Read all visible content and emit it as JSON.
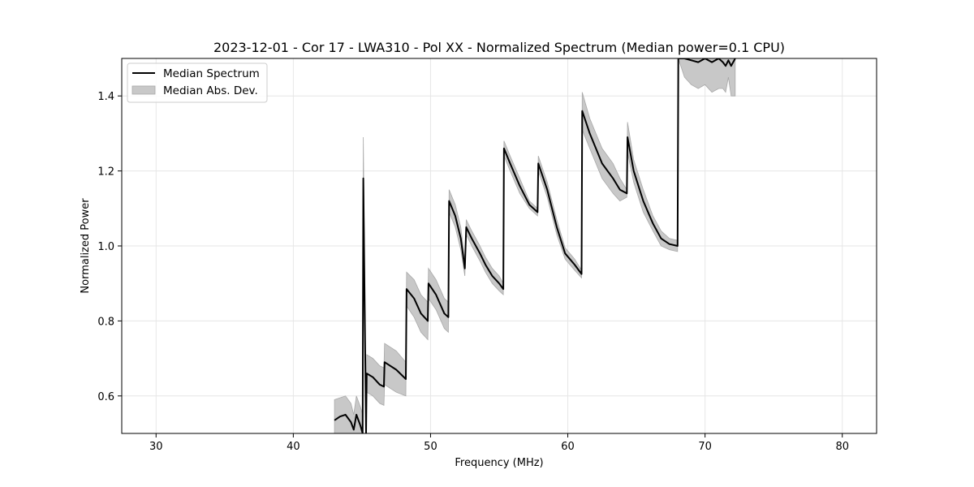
{
  "chart_data": {
    "type": "line",
    "title": "2023-12-01 - Cor 17 - LWA310 - Pol XX - Normalized Spectrum (Median power=0.1 CPU)",
    "xlabel": "Frequency (MHz)",
    "ylabel": "Normalized Power",
    "xlim": [
      27.5,
      82.5
    ],
    "ylim": [
      0.5,
      1.5
    ],
    "xticks": [
      30,
      40,
      50,
      60,
      70,
      80
    ],
    "yticks": [
      0.6,
      0.8,
      1.0,
      1.2,
      1.4
    ],
    "grid": true,
    "legend_position": "top-left",
    "colors": {
      "line": "#000000",
      "band": "#c8c8c8",
      "band_edge": "#a8a8a8",
      "grid": "#e6e6e6"
    },
    "series": [
      {
        "name": "Median Spectrum",
        "style": "line",
        "x": [
          43.0,
          43.4,
          43.8,
          44.2,
          44.4,
          44.6,
          44.9,
          45.05,
          45.1,
          45.3,
          45.35,
          45.8,
          46.3,
          46.6,
          46.65,
          47.5,
          48.2,
          48.25,
          48.8,
          49.3,
          49.8,
          49.85,
          50.4,
          51.0,
          51.3,
          51.35,
          51.8,
          52.2,
          52.5,
          52.6,
          53.0,
          53.6,
          54.0,
          54.5,
          55.0,
          55.3,
          55.35,
          55.8,
          56.5,
          57.2,
          57.8,
          57.85,
          58.5,
          59.2,
          59.8,
          60.5,
          61.0,
          61.05,
          61.6,
          62.5,
          63.3,
          63.8,
          64.3,
          64.35,
          64.8,
          65.5,
          66.2,
          66.8,
          67.4,
          68.0,
          68.05,
          68.5,
          69.0,
          69.5,
          70.0,
          70.5,
          71.0,
          71.3,
          71.5,
          71.7,
          71.9,
          72.2
        ],
        "y": [
          0.535,
          0.545,
          0.55,
          0.53,
          0.51,
          0.55,
          0.52,
          0.5,
          1.18,
          0.5,
          0.66,
          0.65,
          0.63,
          0.625,
          0.69,
          0.67,
          0.645,
          0.885,
          0.86,
          0.82,
          0.8,
          0.9,
          0.87,
          0.82,
          0.81,
          1.12,
          1.08,
          1.02,
          0.94,
          1.05,
          1.02,
          0.98,
          0.95,
          0.92,
          0.9,
          0.885,
          1.26,
          1.22,
          1.16,
          1.11,
          1.09,
          1.22,
          1.15,
          1.05,
          0.98,
          0.95,
          0.925,
          1.36,
          1.3,
          1.22,
          1.18,
          1.15,
          1.14,
          1.29,
          1.2,
          1.12,
          1.06,
          1.02,
          1.005,
          1.0,
          1.5,
          1.5,
          1.495,
          1.49,
          1.5,
          1.49,
          1.5,
          1.49,
          1.48,
          1.495,
          1.48,
          1.5
        ]
      },
      {
        "name": "Median Abs. Dev.",
        "style": "band",
        "x": [
          43.0,
          43.4,
          43.8,
          44.2,
          44.4,
          44.6,
          44.9,
          45.05,
          45.1,
          45.3,
          45.35,
          45.8,
          46.3,
          46.6,
          46.65,
          47.5,
          48.2,
          48.25,
          48.8,
          49.3,
          49.8,
          49.85,
          50.4,
          51.0,
          51.3,
          51.35,
          51.8,
          52.2,
          52.5,
          52.6,
          53.0,
          53.6,
          54.0,
          54.5,
          55.0,
          55.3,
          55.35,
          55.8,
          56.5,
          57.2,
          57.8,
          57.85,
          58.5,
          59.2,
          59.8,
          60.5,
          61.0,
          61.05,
          61.6,
          62.5,
          63.3,
          63.8,
          64.3,
          64.35,
          64.8,
          65.5,
          66.2,
          66.8,
          67.4,
          68.0,
          68.05,
          68.5,
          69.0,
          69.5,
          70.0,
          70.5,
          71.0,
          71.3,
          71.5,
          71.7,
          71.9,
          72.2
        ],
        "lower": [
          0.5,
          0.5,
          0.5,
          0.5,
          0.5,
          0.5,
          0.5,
          0.5,
          1.06,
          0.5,
          0.61,
          0.6,
          0.58,
          0.575,
          0.63,
          0.61,
          0.6,
          0.84,
          0.81,
          0.77,
          0.75,
          0.86,
          0.83,
          0.78,
          0.77,
          1.09,
          1.05,
          0.99,
          0.92,
          1.03,
          1.0,
          0.96,
          0.93,
          0.9,
          0.88,
          0.87,
          1.24,
          1.2,
          1.14,
          1.1,
          1.08,
          1.2,
          1.13,
          1.03,
          0.965,
          0.935,
          0.915,
          1.31,
          1.26,
          1.18,
          1.14,
          1.12,
          1.13,
          1.25,
          1.17,
          1.09,
          1.04,
          1.0,
          0.99,
          0.985,
          1.5,
          1.45,
          1.43,
          1.42,
          1.43,
          1.41,
          1.42,
          1.42,
          1.41,
          1.45,
          1.4,
          1.4
        ],
        "upper": [
          0.59,
          0.595,
          0.6,
          0.58,
          0.55,
          0.6,
          0.57,
          0.55,
          1.29,
          0.55,
          0.71,
          0.7,
          0.68,
          0.675,
          0.74,
          0.72,
          0.69,
          0.93,
          0.91,
          0.87,
          0.85,
          0.94,
          0.91,
          0.86,
          0.85,
          1.15,
          1.11,
          1.05,
          0.96,
          1.07,
          1.04,
          1.0,
          0.97,
          0.94,
          0.92,
          0.9,
          1.28,
          1.24,
          1.18,
          1.12,
          1.1,
          1.24,
          1.17,
          1.07,
          0.995,
          0.965,
          0.935,
          1.41,
          1.34,
          1.26,
          1.22,
          1.18,
          1.15,
          1.33,
          1.23,
          1.15,
          1.08,
          1.04,
          1.02,
          1.015,
          1.5,
          1.5,
          1.5,
          1.5,
          1.5,
          1.5,
          1.5,
          1.5,
          1.5,
          1.5,
          1.5,
          1.5
        ]
      }
    ]
  }
}
